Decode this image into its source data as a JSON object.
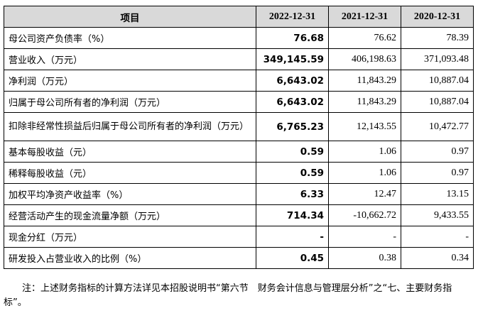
{
  "table": {
    "headers": [
      "项目",
      "2022-12-31",
      "2021-12-31",
      "2020-12-31"
    ],
    "rows": [
      {
        "label": "母公司资产负债率（%）",
        "v2022": "76.68",
        "v2021": "76.62",
        "v2020": "78.39"
      },
      {
        "label": "营业收入（万元）",
        "v2022": "349,145.59",
        "v2021": "406,198.63",
        "v2020": "371,093.48"
      },
      {
        "label": "净利润（万元）",
        "v2022": "6,643.02",
        "v2021": "11,843.29",
        "v2020": "10,887.04"
      },
      {
        "label": "归属于母公司所有者的净利润（万元）",
        "v2022": "6,643.02",
        "v2021": "11,843.29",
        "v2020": "10,887.04"
      },
      {
        "label": "扣除非经常性损益后归属于母公司所有者的净利润（万元）",
        "v2022": "6,765.23",
        "v2021": "12,143.55",
        "v2020": "10,472.77"
      },
      {
        "label": "基本每股收益（元）",
        "v2022": "0.59",
        "v2021": "1.06",
        "v2020": "0.97"
      },
      {
        "label": "稀释每股收益（元）",
        "v2022": "0.59",
        "v2021": "1.06",
        "v2020": "0.97"
      },
      {
        "label": "加权平均净资产收益率（%）",
        "v2022": "6.33",
        "v2021": "12.47",
        "v2020": "13.15"
      },
      {
        "label": "经营活动产生的现金流量净额（万元）",
        "v2022": "714.34",
        "v2021": "-10,662.72",
        "v2020": "9,433.55"
      },
      {
        "label": "现金分红（万元）",
        "v2022": "-",
        "v2021": "-",
        "v2020": "-"
      },
      {
        "label": "研发投入占营业收入的比例（%）",
        "v2022": "0.45",
        "v2021": "0.38",
        "v2020": "0.34"
      }
    ]
  },
  "note": "注：上述财务指标的计算方法详见本招股说明书“第六节　财务会计信息与管理层分析”之“七、主要财务指标”。"
}
